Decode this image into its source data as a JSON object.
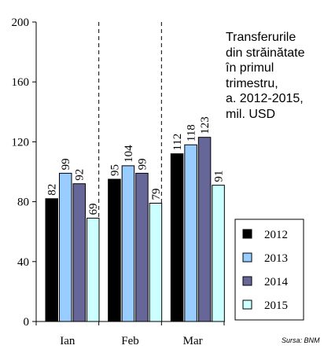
{
  "chart_data": {
    "type": "bar",
    "title_lines": [
      "Transferurile",
      "din străinătate",
      "în primul",
      "trimestru,",
      "a. 2012-2015,",
      "mil. USD"
    ],
    "source": "Sursa: BNM",
    "categories": [
      "Ian",
      "Feb",
      "Mar"
    ],
    "series": [
      {
        "name": "2012",
        "values": [
          82,
          95,
          112
        ],
        "color": "#000000"
      },
      {
        "name": "2013",
        "values": [
          99,
          104,
          118
        ],
        "color": "#99ccff"
      },
      {
        "name": "2014",
        "values": [
          92,
          99,
          123
        ],
        "color": "#666699"
      },
      {
        "name": "2015",
        "values": [
          69,
          79,
          91
        ],
        "color": "#ccffff"
      }
    ],
    "ylim": [
      0,
      200
    ],
    "yticks": [
      0,
      40,
      80,
      120,
      160,
      200
    ],
    "grid": false,
    "legend": "bottom-right",
    "category_separators": "dashed"
  }
}
